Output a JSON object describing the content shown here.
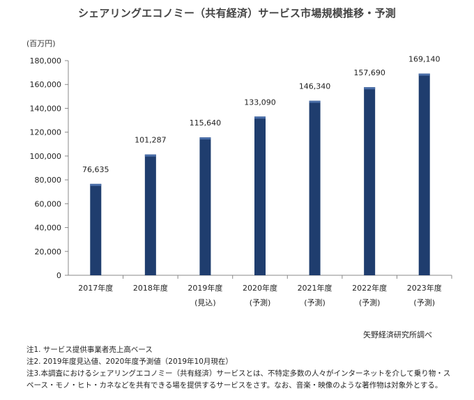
{
  "chart_data": {
    "type": "bar",
    "title": "シェアリングエコノミー（共有経済）サービス市場規模推移・予測",
    "ylabel": "(百万円)",
    "ylim": [
      0,
      180000
    ],
    "yticks": [
      0,
      20000,
      40000,
      60000,
      80000,
      100000,
      120000,
      140000,
      160000,
      180000
    ],
    "ytick_labels": [
      "0",
      "20,000",
      "40,000",
      "60,000",
      "80,000",
      "100,000",
      "120,000",
      "140,000",
      "160,000",
      "180,000"
    ],
    "categories": [
      "2017年度",
      "2018年度",
      "2019年度",
      "2020年度",
      "2021年度",
      "2022年度",
      "2023年度"
    ],
    "category_sublabels": [
      "",
      "",
      "(見込)",
      "(予測)",
      "(予測)",
      "(予測)",
      "(予測)"
    ],
    "values": [
      76635,
      101287,
      115640,
      133090,
      146340,
      157690,
      169140
    ],
    "value_labels": [
      "76,635",
      "101,287",
      "115,640",
      "133,090",
      "146,340",
      "157,690",
      "169,140"
    ],
    "bar_color": "#1f3d6e",
    "grid": false
  },
  "source": "矢野経済研究所調べ",
  "notes": [
    "注1. サービス提供事業者売上高ベース",
    "注2. 2019年度見込値、2020年度予測値（2019年10月現在）",
    "注3.本調査におけるシェアリングエコノミー（共有経済）サービスとは、不特定多数の人々がインターネットを介して乗り物・ス",
    "ペース・モノ・ヒト・カネなどを共有できる場を提供するサービスをさす。なお、音楽・映像のような著作物は対象外とする。"
  ]
}
